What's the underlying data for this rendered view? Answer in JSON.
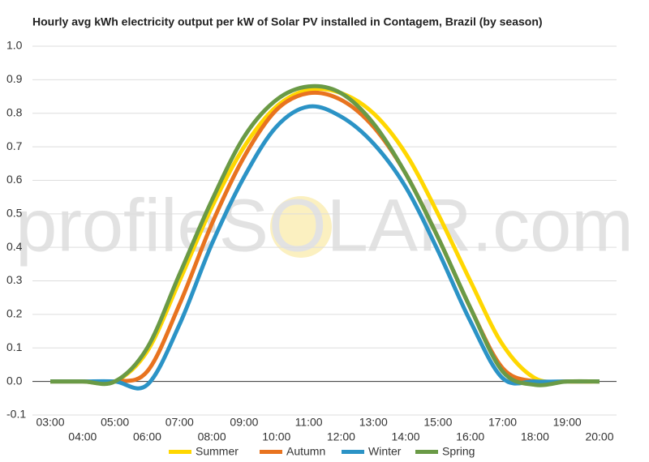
{
  "chart_data": {
    "type": "line",
    "title": "Hourly avg kWh electricity output per kW of Solar PV installed in Contagem, Brazil (by season)",
    "watermark": "profileSOLAR.com",
    "categories": [
      "03:00",
      "04:00",
      "05:00",
      "06:00",
      "07:00",
      "08:00",
      "09:00",
      "10:00",
      "11:00",
      "12:00",
      "13:00",
      "14:00",
      "15:00",
      "16:00",
      "17:00",
      "18:00",
      "19:00",
      "20:00"
    ],
    "series": [
      {
        "name": "Summer",
        "color": "#ffd700",
        "values": [
          0,
          0,
          0,
          0.09,
          0.3,
          0.52,
          0.7,
          0.82,
          0.87,
          0.86,
          0.8,
          0.68,
          0.5,
          0.3,
          0.11,
          0.01,
          0,
          0
        ]
      },
      {
        "name": "Autumn",
        "color": "#e8731f",
        "values": [
          0,
          0,
          0,
          0.03,
          0.23,
          0.47,
          0.67,
          0.81,
          0.86,
          0.84,
          0.76,
          0.62,
          0.43,
          0.22,
          0.04,
          0,
          0,
          0
        ]
      },
      {
        "name": "Winter",
        "color": "#2b93c6",
        "values": [
          0,
          0,
          0,
          -0.01,
          0.17,
          0.41,
          0.61,
          0.76,
          0.82,
          0.79,
          0.71,
          0.58,
          0.39,
          0.18,
          0.01,
          0,
          0,
          0
        ]
      },
      {
        "name": "Spring",
        "color": "#6a9a46",
        "values": [
          0,
          0,
          0,
          0.1,
          0.32,
          0.54,
          0.73,
          0.84,
          0.88,
          0.86,
          0.77,
          0.62,
          0.43,
          0.22,
          0.03,
          -0.01,
          0,
          0
        ]
      }
    ],
    "ylim": [
      -0.1,
      1.0
    ],
    "yticks": [
      {
        "value": -0.1,
        "label": "-0.1"
      },
      {
        "value": 0,
        "label": "0.0"
      },
      0.1,
      0.2,
      0.3,
      0.4,
      0.5,
      0.6,
      0.7,
      0.8,
      0.9,
      {
        "value": 1,
        "label": "1.0"
      }
    ],
    "grid": true
  }
}
